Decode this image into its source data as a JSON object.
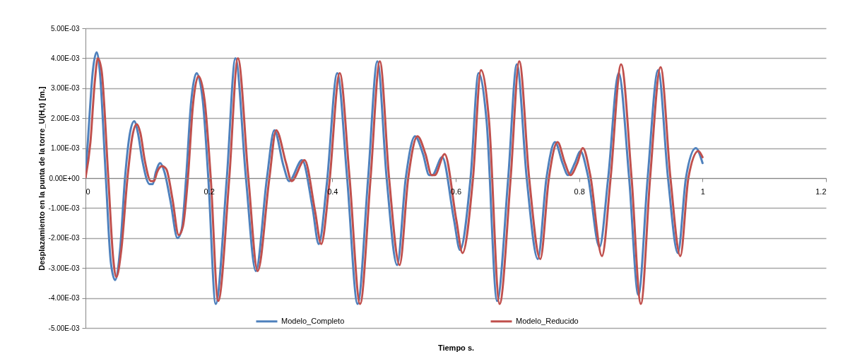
{
  "chart_data": {
    "type": "line",
    "xlabel": "Tiempo s.",
    "ylabel": "Desplazamiento en la punta de la torre_U(H,t) [m.]",
    "xlim": [
      0,
      1.2
    ],
    "xticks": [
      0,
      0.2,
      0.4,
      0.6,
      0.8,
      1,
      1.2
    ],
    "ylim": [
      -0.005,
      0.005
    ],
    "yticks": [
      {
        "value": -0.005,
        "label": "-5.00E-03"
      },
      {
        "value": -0.004,
        "label": "-4.00E-03"
      },
      {
        "value": -0.003,
        "label": "-3.00E-03"
      },
      {
        "value": -0.002,
        "label": "-2.00E-03"
      },
      {
        "value": -0.001,
        "label": "-1.00E-03"
      },
      {
        "value": 0,
        "label": "0.00E+00"
      },
      {
        "value": 0.001,
        "label": "1.00E-03"
      },
      {
        "value": 0.002,
        "label": "2.00E-03"
      },
      {
        "value": 0.003,
        "label": "3.00E-03"
      },
      {
        "value": 0.004,
        "label": "4.00E-03"
      },
      {
        "value": 0.005,
        "label": "5.00E-03"
      }
    ],
    "grid": "y",
    "legend": "bottom",
    "marker": "none",
    "line_style": "solid",
    "series": [
      {
        "name": "Modelo_Completo",
        "color": "#4f81bd",
        "x": [
          0,
          0.005,
          0.012,
          0.018,
          0.023,
          0.033,
          0.041,
          0.048,
          0.056,
          0.064,
          0.072,
          0.079,
          0.085,
          0.092,
          0.104,
          0.109,
          0.114,
          0.121,
          0.128,
          0.138,
          0.149,
          0.156,
          0.163,
          0.171,
          0.18,
          0.19,
          0.199,
          0.211,
          0.229,
          0.243,
          0.26,
          0.276,
          0.294,
          0.306,
          0.321,
          0.33,
          0.351,
          0.368,
          0.378,
          0.391,
          0.408,
          0.424,
          0.441,
          0.458,
          0.473,
          0.488,
          0.505,
          0.519,
          0.534,
          0.547,
          0.557,
          0.562,
          0.578,
          0.597,
          0.607,
          0.624,
          0.637,
          0.65,
          0.667,
          0.685,
          0.699,
          0.715,
          0.733,
          0.747,
          0.761,
          0.773,
          0.782,
          0.793,
          0.802,
          0.814,
          0.833,
          0.847,
          0.864,
          0.881,
          0.896,
          0.911,
          0.928,
          0.944,
          0.96,
          0.973,
          0.989,
          1
        ],
        "values": [
          0,
          0.0016,
          0.0036,
          0.0042,
          0.0036,
          0,
          -0.0028,
          -0.0034,
          -0.0024,
          0,
          0.0015,
          0.0019,
          0.0015,
          0.0006,
          -0.0002,
          -0.0002,
          0.0002,
          0.0005,
          0.0002,
          -0.0008,
          -0.002,
          -0.0017,
          0,
          0.0025,
          0.0035,
          0.0026,
          0,
          -0.0042,
          0,
          0.004,
          0,
          -0.0031,
          0,
          0.0016,
          0.0004,
          -0.0001,
          0.0006,
          -0.001,
          -0.0022,
          -0.0002,
          0.0035,
          0,
          -0.0042,
          0,
          0.0039,
          0,
          -0.0029,
          0,
          0.0014,
          0.0008,
          0.0001,
          0.0001,
          0.0007,
          -0.00137,
          -0.0024,
          0,
          0.0035,
          0.0019,
          -0.0041,
          0,
          0.0038,
          0,
          -0.0027,
          0,
          0.0012,
          0.0005,
          0.0001,
          0.0005,
          0.0009,
          0.0001,
          -0.0023,
          0,
          0.0035,
          0,
          -0.0039,
          0,
          0.0036,
          0,
          -0.0025,
          0,
          0.001,
          0.0005
        ]
      },
      {
        "name": "Modelo_Reducido",
        "color": "#c0504d",
        "x": [
          0,
          0.008,
          0.015,
          0.02,
          0.026,
          0.037,
          0.045,
          0.05,
          0.058,
          0.068,
          0.076,
          0.083,
          0.089,
          0.096,
          0.106,
          0.111,
          0.116,
          0.124,
          0.131,
          0.141,
          0.151,
          0.158,
          0.166,
          0.174,
          0.183,
          0.193,
          0.203,
          0.215,
          0.233,
          0.247,
          0.264,
          0.279,
          0.298,
          0.309,
          0.325,
          0.334,
          0.355,
          0.372,
          0.382,
          0.395,
          0.412,
          0.428,
          0.445,
          0.462,
          0.477,
          0.492,
          0.509,
          0.523,
          0.538,
          0.551,
          0.561,
          0.566,
          0.582,
          0.601,
          0.611,
          0.628,
          0.641,
          0.654,
          0.671,
          0.689,
          0.703,
          0.719,
          0.737,
          0.751,
          0.765,
          0.777,
          0.786,
          0.797,
          0.806,
          0.818,
          0.837,
          0.851,
          0.868,
          0.885,
          0.9,
          0.915,
          0.932,
          0.948,
          0.964,
          0.977,
          0.993,
          1
        ],
        "values": [
          0,
          0.0012,
          0.0032,
          0.004,
          0.0036,
          0,
          -0.0027,
          -0.0033,
          -0.0024,
          0,
          0.0014,
          0.0018,
          0.0015,
          0.0006,
          -0.0001,
          -0.0001,
          0.0002,
          0.0004,
          0.0003,
          -0.0007,
          -0.0019,
          -0.0016,
          0,
          0.0024,
          0.0034,
          0.0026,
          0,
          -0.0041,
          0,
          0.004,
          0,
          -0.0031,
          0,
          0.0016,
          0.0005,
          -0.0001,
          0.0006,
          -0.0011,
          -0.0022,
          -0.0002,
          0.0035,
          0,
          -0.0042,
          0,
          0.0039,
          0,
          -0.0029,
          0,
          0.0014,
          0.0008,
          0.0001,
          0.0001,
          0.0008,
          -0.0014,
          -0.0025,
          0,
          0.0036,
          0.0019,
          -0.0042,
          0,
          0.0039,
          0,
          -0.0027,
          0,
          0.0012,
          0.0005,
          0.0001,
          0.0005,
          0.001,
          0.0001,
          -0.0026,
          0,
          0.0038,
          0,
          -0.0042,
          0,
          0.0037,
          0,
          -0.0026,
          0,
          0.0009,
          0.0007
        ]
      }
    ]
  }
}
